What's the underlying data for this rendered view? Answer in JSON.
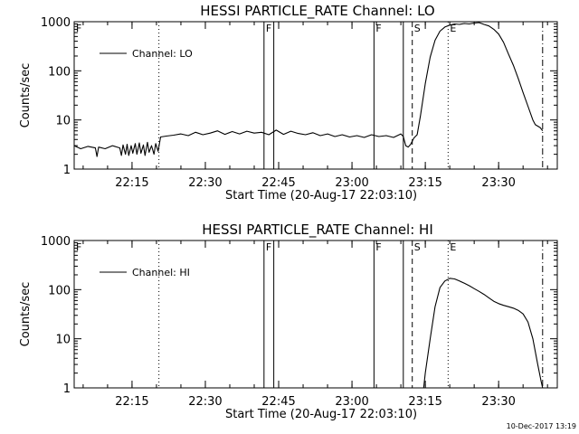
{
  "footer": {
    "timestamp": "10-Dec-2017 13:19"
  },
  "chart_data": [
    {
      "type": "line",
      "title": "HESSI PARTICLE_RATE Channel: LO",
      "xlabel": "Start Time (20-Aug-17 22:03:10)",
      "ylabel": "Counts/sec",
      "xlim": [
        "22:03:10",
        "23:42:00"
      ],
      "ylim": [
        1,
        1000
      ],
      "y_scale": "log",
      "grid": false,
      "legend": {
        "position": "top-left",
        "entries": [
          "Channel: LO"
        ]
      },
      "x_ticks": [
        "22:15",
        "22:30",
        "22:45",
        "23:00",
        "23:15",
        "23:30"
      ],
      "y_ticks": [
        "1",
        "10",
        "100",
        "1000"
      ],
      "markers": [
        {
          "label": "F",
          "times": [
            "22:03:10",
            "22:42:00",
            "23:04:30"
          ],
          "style": "solid"
        },
        {
          "label": "",
          "times": [
            "22:44:00",
            "23:10:30"
          ],
          "style": "solid"
        },
        {
          "label": "",
          "times": [
            "22:20:30",
            "23:19:40"
          ],
          "style": "dotted"
        },
        {
          "label": "S",
          "times": [
            "23:12:20"
          ],
          "style": "dashed"
        },
        {
          "label": "E",
          "times": [
            "23:19:40"
          ],
          "style": "none"
        },
        {
          "label": "",
          "times": [
            "23:39:00"
          ],
          "style": "dashdot"
        }
      ],
      "series": [
        {
          "name": "Channel: LO",
          "x": [
            "22:03:10",
            "22:04:30",
            "22:06:00",
            "22:07:30",
            "22:07:50",
            "22:08:10",
            "22:09:30",
            "22:11:00",
            "22:12:30",
            "22:12:50",
            "22:13:10",
            "22:13:40",
            "22:14:00",
            "22:14:20",
            "22:14:50",
            "22:15:10",
            "22:15:40",
            "22:16:00",
            "22:16:30",
            "22:16:50",
            "22:17:20",
            "22:17:40",
            "22:18:10",
            "22:18:30",
            "22:19:00",
            "22:19:30",
            "22:19:50",
            "22:20:20",
            "22:20:50",
            "22:22:00",
            "22:23:30",
            "22:25:00",
            "22:26:30",
            "22:28:00",
            "22:29:30",
            "22:31:00",
            "22:32:30",
            "22:34:00",
            "22:35:30",
            "22:37:00",
            "22:38:30",
            "22:40:00",
            "22:41:30",
            "22:43:00",
            "22:44:30",
            "22:46:00",
            "22:47:30",
            "22:49:00",
            "22:50:30",
            "22:52:00",
            "22:53:30",
            "22:55:00",
            "22:56:30",
            "22:58:00",
            "22:59:30",
            "23:01:00",
            "23:02:30",
            "23:04:00",
            "23:05:30",
            "23:07:00",
            "23:08:30",
            "23:10:00",
            "23:10:30",
            "23:11:00",
            "23:11:30",
            "23:12:00",
            "23:12:40",
            "23:13:20",
            "23:14:00",
            "23:15:00",
            "23:16:00",
            "23:17:00",
            "23:18:00",
            "23:19:00",
            "23:20:00",
            "23:21:00",
            "23:22:00",
            "23:23:00",
            "23:24:00",
            "23:25:00",
            "23:26:00",
            "23:27:00",
            "23:28:00",
            "23:29:00",
            "23:30:00",
            "23:31:00",
            "23:32:00",
            "23:33:00",
            "23:34:00",
            "23:35:00",
            "23:36:00",
            "23:37:00",
            "23:37:30",
            "23:38:00",
            "23:38:30",
            "23:39:00"
          ],
          "values": [
            3.0,
            2.6,
            2.9,
            2.7,
            1.8,
            2.8,
            2.6,
            3.0,
            2.7,
            1.9,
            3.1,
            2.0,
            3.2,
            1.9,
            3.0,
            2.1,
            3.3,
            2.0,
            3.4,
            2.1,
            3.1,
            1.9,
            3.5,
            2.2,
            3.0,
            2.0,
            3.3,
            2.3,
            4.5,
            4.7,
            4.9,
            5.2,
            4.8,
            5.6,
            5.0,
            5.4,
            6.0,
            5.1,
            5.8,
            5.2,
            5.9,
            5.4,
            5.6,
            5.0,
            6.2,
            5.1,
            5.9,
            5.3,
            5.0,
            5.5,
            4.8,
            5.2,
            4.6,
            5.0,
            4.5,
            4.8,
            4.4,
            5.0,
            4.6,
            4.8,
            4.4,
            5.2,
            4.6,
            3.0,
            2.8,
            3.2,
            4.3,
            5.0,
            12,
            55,
            190,
            420,
            640,
            780,
            850,
            900,
            880,
            920,
            900,
            940,
            960,
            880,
            820,
            700,
            560,
            380,
            220,
            130,
            70,
            36,
            19,
            10,
            8,
            7.5,
            7,
            6
          ]
        }
      ]
    },
    {
      "type": "line",
      "title": "HESSI PARTICLE_RATE Channel: HI",
      "xlabel": "Start Time (20-Aug-17 22:03:10)",
      "ylabel": "Counts/sec",
      "xlim": [
        "22:03:10",
        "23:42:00"
      ],
      "ylim": [
        1,
        1000
      ],
      "y_scale": "log",
      "grid": false,
      "legend": {
        "position": "top-left",
        "entries": [
          "Channel: HI"
        ]
      },
      "x_ticks": [
        "22:15",
        "22:30",
        "22:45",
        "23:00",
        "23:15",
        "23:30"
      ],
      "y_ticks": [
        "1",
        "10",
        "100",
        "1000"
      ],
      "markers": [
        {
          "label": "F",
          "times": [
            "22:03:10",
            "22:42:00",
            "23:04:30"
          ],
          "style": "solid"
        },
        {
          "label": "",
          "times": [
            "22:44:00",
            "23:10:30"
          ],
          "style": "solid"
        },
        {
          "label": "",
          "times": [
            "22:20:30",
            "23:19:40"
          ],
          "style": "dotted"
        },
        {
          "label": "S",
          "times": [
            "23:12:20"
          ],
          "style": "dashed"
        },
        {
          "label": "E",
          "times": [
            "23:19:40"
          ],
          "style": "none"
        },
        {
          "label": "",
          "times": [
            "23:39:00"
          ],
          "style": "dashdot"
        }
      ],
      "series": [
        {
          "name": "Channel: HI",
          "x": [
            "23:14:40",
            "23:15:00",
            "23:16:00",
            "23:17:00",
            "23:18:00",
            "23:19:00",
            "23:20:00",
            "23:21:00",
            "23:22:00",
            "23:23:00",
            "23:24:00",
            "23:25:00",
            "23:26:00",
            "23:27:00",
            "23:28:00",
            "23:29:00",
            "23:30:00",
            "23:31:00",
            "23:32:00",
            "23:33:00",
            "23:34:00",
            "23:35:00",
            "23:36:00",
            "23:37:00",
            "23:38:00",
            "23:38:40",
            "23:39:00"
          ],
          "values": [
            1,
            2,
            10,
            45,
            110,
            150,
            170,
            165,
            150,
            135,
            120,
            105,
            92,
            80,
            68,
            58,
            52,
            48,
            45,
            42,
            38,
            32,
            22,
            10,
            3,
            1.4,
            1
          ]
        }
      ]
    }
  ]
}
